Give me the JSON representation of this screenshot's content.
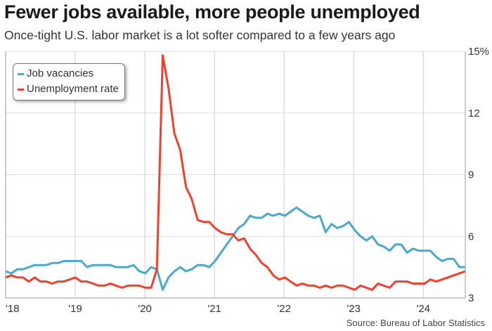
{
  "title": "Fewer jobs available, more people unemployed",
  "subtitle": "Once-tight U.S. labor market is a lot softer compared to a few years ago",
  "source": "Source: Bureau of Labor Statistics",
  "chart_data": {
    "type": "line",
    "x_start": "Jan 2018",
    "x_end": "Aug 2024",
    "frequency": "monthly",
    "xticks": [
      "'18",
      "'19",
      "'20",
      "'21",
      "'22",
      "'23",
      "'24"
    ],
    "yticks": [
      "3",
      "6",
      "9",
      "12",
      "15%"
    ],
    "ylim": [
      3,
      15
    ],
    "grid": true,
    "legend_position": "top-left",
    "series": [
      {
        "name": "Job vacancies",
        "color": "#4aa8cc",
        "values": [
          4.3,
          4.2,
          4.4,
          4.4,
          4.5,
          4.6,
          4.6,
          4.6,
          4.7,
          4.7,
          4.8,
          4.8,
          4.8,
          4.8,
          4.5,
          4.6,
          4.6,
          4.6,
          4.6,
          4.5,
          4.5,
          4.5,
          4.6,
          4.3,
          4.2,
          4.5,
          4.4,
          3.4,
          4.0,
          4.3,
          4.5,
          4.3,
          4.4,
          4.6,
          4.6,
          4.5,
          4.8,
          5.2,
          5.6,
          6.0,
          6.4,
          6.6,
          7.0,
          6.9,
          6.9,
          7.1,
          7.0,
          7.1,
          7.0,
          7.2,
          7.4,
          7.2,
          7.0,
          6.9,
          7.0,
          6.2,
          6.6,
          6.4,
          6.5,
          6.7,
          6.3,
          6.0,
          5.8,
          6.0,
          5.6,
          5.5,
          5.3,
          5.6,
          5.6,
          5.2,
          5.4,
          5.3,
          5.3,
          5.3,
          5.0,
          4.8,
          4.9,
          4.9,
          4.5,
          4.5
        ]
      },
      {
        "name": "Unemployment rate",
        "color": "#f2402a",
        "values": [
          4.0,
          4.1,
          4.0,
          4.0,
          3.8,
          4.0,
          3.8,
          3.8,
          3.7,
          3.8,
          3.8,
          3.9,
          4.0,
          3.8,
          3.8,
          3.7,
          3.6,
          3.6,
          3.7,
          3.6,
          3.5,
          3.6,
          3.6,
          3.6,
          3.5,
          3.5,
          4.4,
          14.8,
          13.2,
          11.0,
          10.2,
          8.4,
          7.8,
          6.8,
          6.7,
          6.7,
          6.4,
          6.2,
          6.1,
          6.1,
          5.8,
          5.9,
          5.4,
          5.1,
          4.7,
          4.5,
          4.1,
          3.9,
          4.0,
          3.8,
          3.6,
          3.7,
          3.6,
          3.6,
          3.5,
          3.6,
          3.5,
          3.6,
          3.6,
          3.5,
          3.4,
          3.6,
          3.5,
          3.4,
          3.7,
          3.6,
          3.5,
          3.8,
          3.8,
          3.8,
          3.7,
          3.7,
          3.7,
          3.9,
          3.8,
          3.9,
          4.0,
          4.1,
          4.2,
          4.3
        ]
      }
    ]
  }
}
